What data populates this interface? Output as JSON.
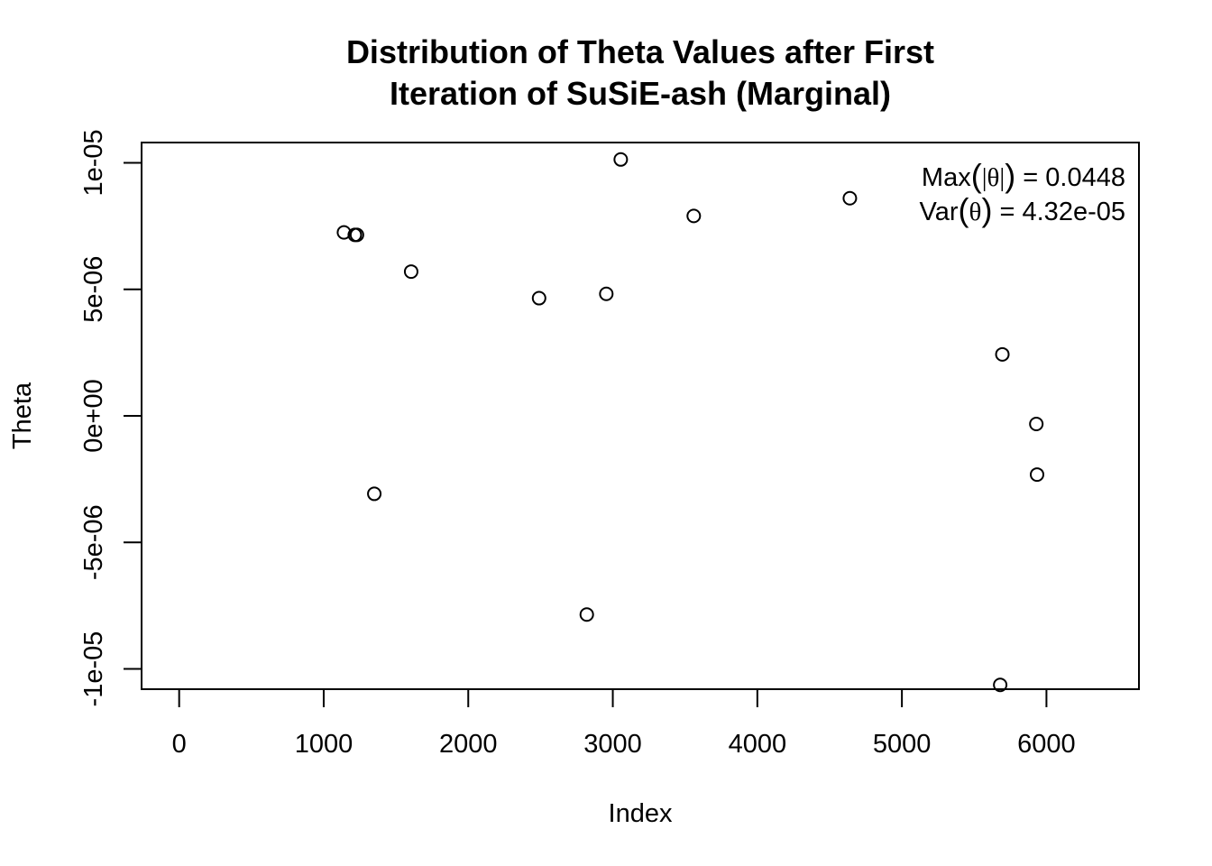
{
  "chart_data": {
    "type": "scatter",
    "title_lines": [
      "Distribution of Theta Values after First",
      "Iteration of SuSiE-ash (Marginal)"
    ],
    "xlabel": "Index",
    "ylabel": "Theta",
    "xlim": [
      -260,
      6640
    ],
    "ylim": [
      -1.08e-05,
      1.08e-05
    ],
    "xticks": [
      0,
      1000,
      2000,
      3000,
      4000,
      5000,
      6000
    ],
    "xtick_labels": [
      "0",
      "1000",
      "2000",
      "3000",
      "4000",
      "5000",
      "6000"
    ],
    "yticks": [
      1e-05,
      5e-06,
      0,
      -5e-06,
      -1e-05
    ],
    "ytick_labels": [
      "1e-05",
      "5e-06",
      "0e+00",
      "-5e-06",
      "-1e-05"
    ],
    "grid": false,
    "marker": "open-circle",
    "annotations": {
      "max_name": "Max",
      "max_symbol": "|θ|",
      "max_value": "0.0448",
      "var_name": "Var",
      "var_symbol": "θ",
      "var_value": "4.32e-05"
    },
    "points": [
      {
        "x": 1140,
        "y": 7.25e-06
      },
      {
        "x": 1215,
        "y": 7.15e-06
      },
      {
        "x": 1230,
        "y": 7.15e-06
      },
      {
        "x": 1350,
        "y": -3.08e-06
      },
      {
        "x": 1605,
        "y": 5.7e-06
      },
      {
        "x": 2490,
        "y": 4.65e-06
      },
      {
        "x": 2820,
        "y": -7.85e-06
      },
      {
        "x": 2955,
        "y": 4.82e-06
      },
      {
        "x": 3055,
        "y": 1.013e-05
      },
      {
        "x": 3560,
        "y": 7.9e-06
      },
      {
        "x": 4640,
        "y": 8.6e-06
      },
      {
        "x": 5680,
        "y": -1.063e-05
      },
      {
        "x": 5695,
        "y": 2.43e-06
      },
      {
        "x": 5930,
        "y": -3.2e-07
      },
      {
        "x": 5935,
        "y": -2.32e-06
      }
    ]
  }
}
